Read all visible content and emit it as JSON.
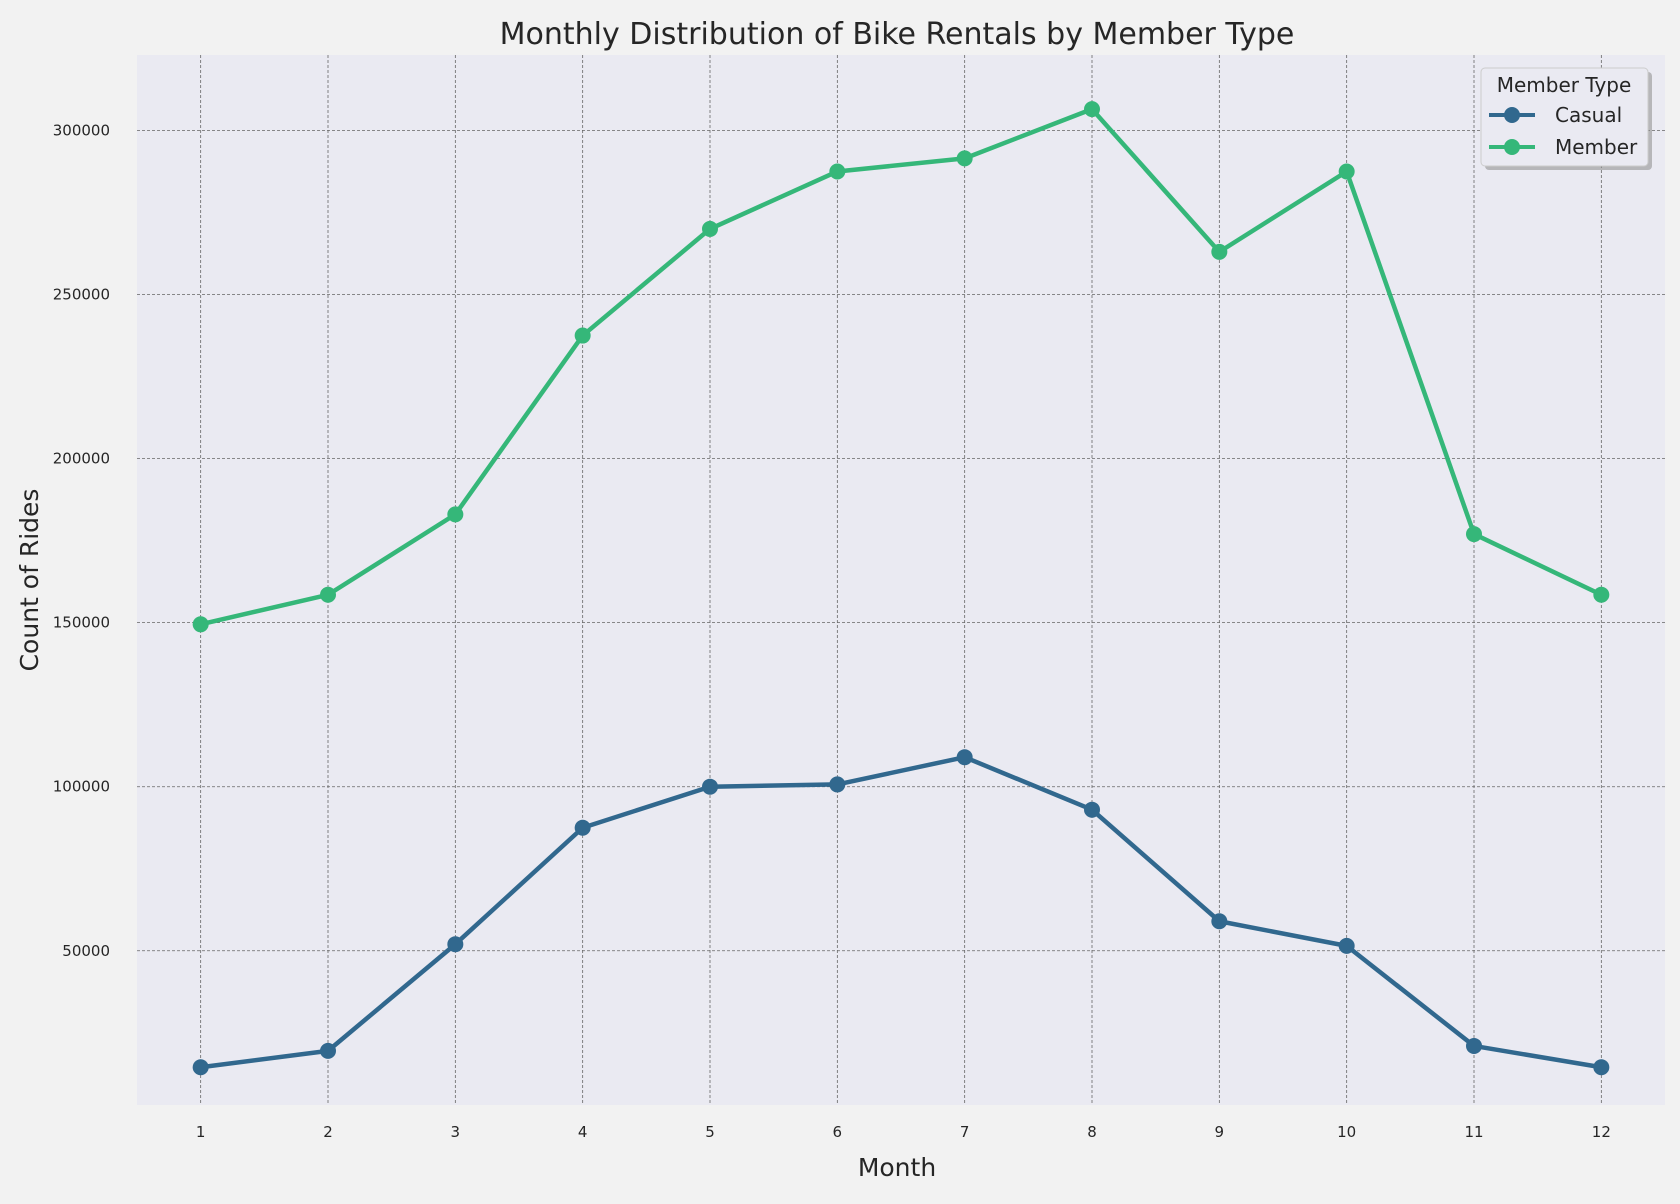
{
  "chart_data": {
    "type": "line",
    "title": "Monthly Distribution of Bike Rentals by Member Type",
    "xlabel": "Month",
    "ylabel": "Count of Rides",
    "categories": [
      1,
      2,
      3,
      4,
      5,
      6,
      7,
      8,
      9,
      10,
      11,
      12
    ],
    "yticks": [
      50000,
      100000,
      150000,
      200000,
      250000,
      300000
    ],
    "ylim": [
      3000,
      323000
    ],
    "xlim": [
      0.5,
      12.5
    ],
    "grid": true,
    "legend": {
      "title": "Member Type",
      "position": "top-right"
    },
    "series": [
      {
        "name": "Casual",
        "color": "#31688e",
        "values": [
          14500,
          19500,
          52000,
          87500,
          100000,
          100700,
          109000,
          93000,
          59000,
          51500,
          21000,
          14500
        ]
      },
      {
        "name": "Member",
        "color": "#35b779",
        "values": [
          149500,
          158500,
          183000,
          237500,
          270000,
          287500,
          291500,
          306500,
          263000,
          287500,
          177000,
          158500
        ]
      }
    ]
  }
}
